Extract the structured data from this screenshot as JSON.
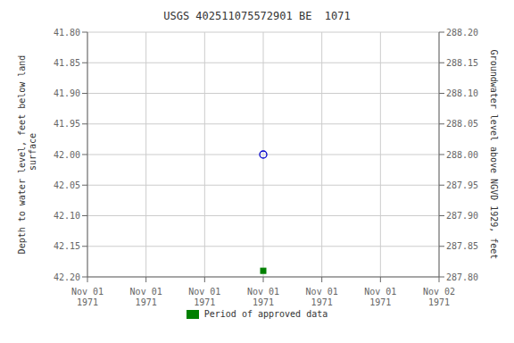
{
  "chart_data": {
    "type": "scatter",
    "title": "USGS 402511075572901 BE  1071",
    "y_label": "Depth to water level, feet below land\n surface",
    "y2_label": "Groundwater level above NGVD 1929, feet",
    "categories": [
      "Nov 01\n1971",
      "Nov 01\n1971",
      "Nov 01\n1971",
      "Nov 01\n1971",
      "Nov 01\n1971",
      "Nov 01\n1971",
      "Nov 02\n1971"
    ],
    "series": [
      {
        "color": "#0000cc",
        "marker": "circle",
        "values": [
          null,
          null,
          null,
          42.0,
          null,
          null,
          null
        ]
      },
      {
        "name": "Period of approved data",
        "color": "#008000",
        "marker": "square",
        "values": [
          null,
          null,
          null,
          42.19,
          null,
          null,
          null
        ]
      }
    ],
    "ylim": [
      42.2,
      41.8
    ],
    "yticks": [
      {
        "value": 41.8,
        "label": "41.80"
      },
      {
        "value": 41.85,
        "label": "41.85"
      },
      {
        "value": 41.9,
        "label": "41.90"
      },
      {
        "value": 41.95,
        "label": "41.95"
      },
      {
        "value": 42.0,
        "label": "42.00"
      },
      {
        "value": 42.05,
        "label": "42.05"
      },
      {
        "value": 42.1,
        "label": "42.10"
      },
      {
        "value": 42.15,
        "label": "42.15"
      },
      {
        "value": 42.2,
        "label": "42.20"
      }
    ],
    "y2lim": [
      287.8,
      288.2
    ],
    "y2ticks": [
      {
        "value": 288.2,
        "label": "288.20"
      },
      {
        "value": 288.15,
        "label": "288.15"
      },
      {
        "value": 288.1,
        "label": "288.10"
      },
      {
        "value": 288.05,
        "label": "288.05"
      },
      {
        "value": 288.0,
        "label": "288.00"
      },
      {
        "value": 287.95,
        "label": "287.95"
      },
      {
        "value": 287.9,
        "label": "287.90"
      },
      {
        "value": 287.85,
        "label": "287.85"
      },
      {
        "value": 287.8,
        "label": "287.80"
      }
    ],
    "grid": true,
    "legend": "bottom"
  }
}
